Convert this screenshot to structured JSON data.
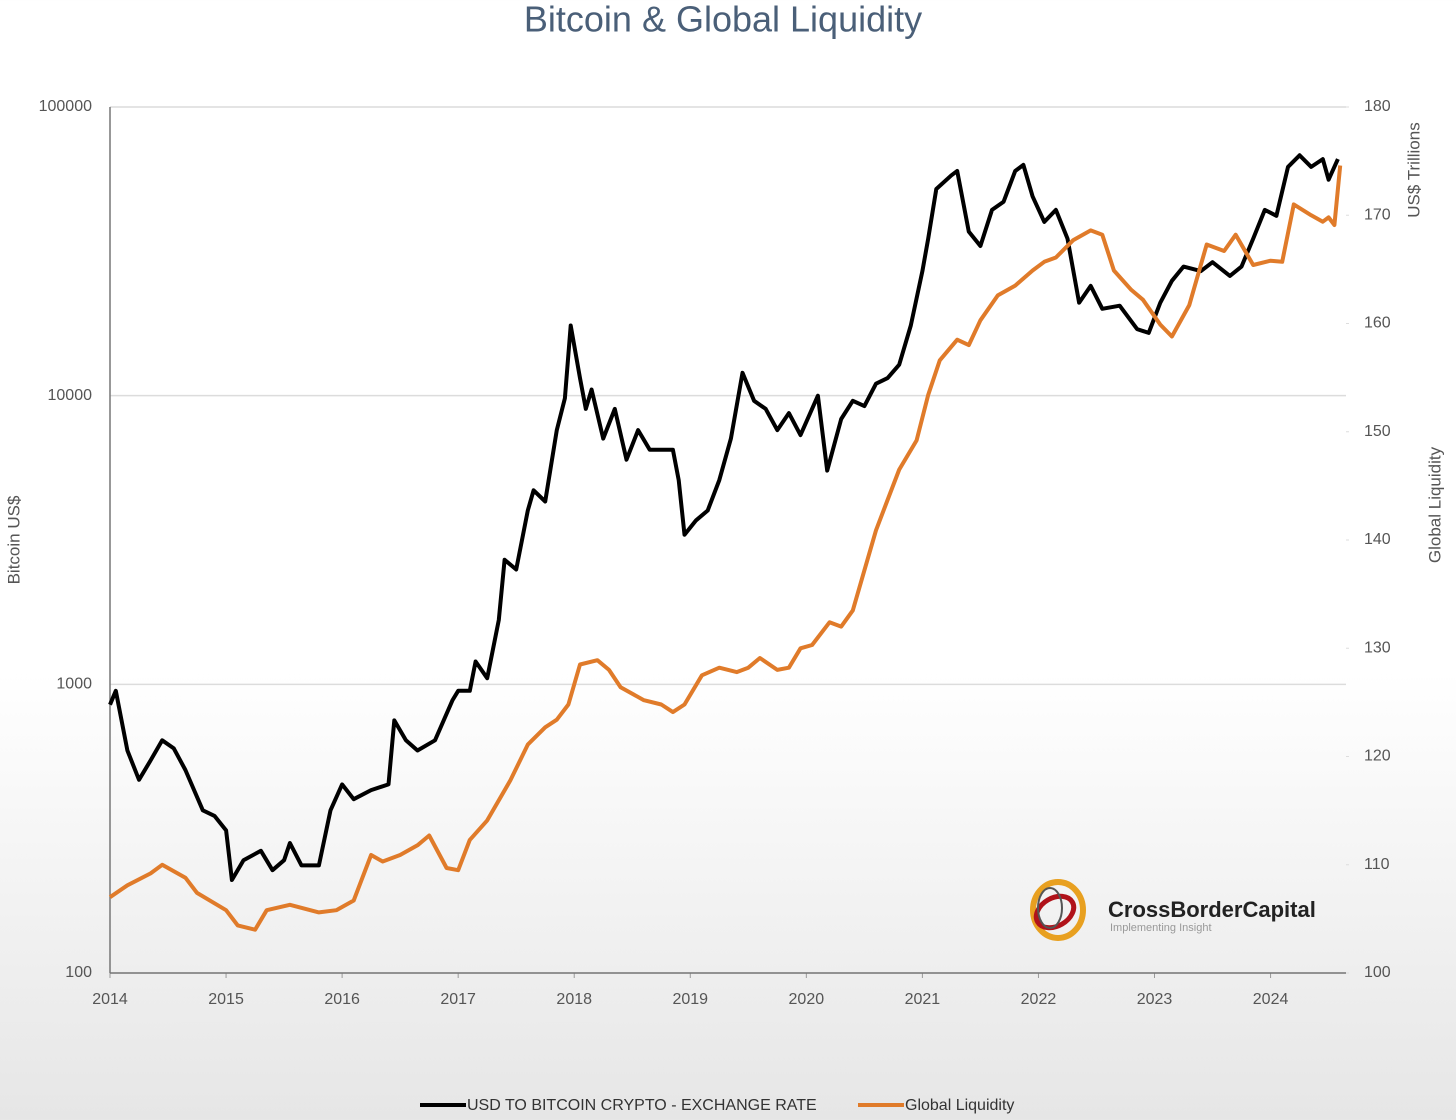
{
  "chart_data": {
    "type": "line",
    "title": "Bitcoin & Global Liquidity",
    "ylabel": "Bitcoin US$",
    "y2label": "US$ Trillions",
    "y2label_secondary": "Global Liquidity",
    "logo": {
      "name": "CrossBorderCapital",
      "tagline": "Implementing Insight"
    },
    "xlim": [
      2014,
      2024.65
    ],
    "xticks": [
      2014,
      2015,
      2016,
      2017,
      2018,
      2019,
      2020,
      2021,
      2022,
      2023,
      2024
    ],
    "ylim": [
      100,
      100000
    ],
    "yscale": "log",
    "yticks": [
      100,
      1000,
      10000,
      100000
    ],
    "y2lim": [
      100,
      180
    ],
    "y2ticks": [
      100,
      110,
      120,
      130,
      140,
      150,
      160,
      170,
      180
    ],
    "grid": true,
    "legend": "bottom",
    "series": [
      {
        "name": "USD TO BITCOIN CRYPTO - EXCHANGE RATE",
        "color": "#000000",
        "axis": "y",
        "x": [
          2014.0,
          2014.05,
          2014.15,
          2014.25,
          2014.35,
          2014.45,
          2014.55,
          2014.65,
          2014.8,
          2014.9,
          2015.0,
          2015.05,
          2015.15,
          2015.3,
          2015.4,
          2015.5,
          2015.55,
          2015.65,
          2015.8,
          2015.9,
          2016.0,
          2016.1,
          2016.25,
          2016.4,
          2016.45,
          2016.55,
          2016.65,
          2016.8,
          2016.95,
          2017.0,
          2017.1,
          2017.15,
          2017.25,
          2017.35,
          2017.4,
          2017.5,
          2017.6,
          2017.65,
          2017.75,
          2017.85,
          2017.92,
          2017.97,
          2018.05,
          2018.1,
          2018.15,
          2018.25,
          2018.35,
          2018.45,
          2018.55,
          2018.65,
          2018.85,
          2018.9,
          2018.95,
          2019.05,
          2019.15,
          2019.25,
          2019.35,
          2019.45,
          2019.55,
          2019.65,
          2019.75,
          2019.85,
          2019.95,
          2020.1,
          2020.18,
          2020.3,
          2020.4,
          2020.5,
          2020.6,
          2020.7,
          2020.8,
          2020.9,
          2021.0,
          2021.05,
          2021.12,
          2021.25,
          2021.3,
          2021.4,
          2021.5,
          2021.6,
          2021.7,
          2021.8,
          2021.87,
          2021.95,
          2022.05,
          2022.15,
          2022.25,
          2022.35,
          2022.45,
          2022.55,
          2022.7,
          2022.85,
          2022.95,
          2023.05,
          2023.15,
          2023.25,
          2023.4,
          2023.5,
          2023.65,
          2023.75,
          2023.85,
          2023.95,
          2024.05,
          2024.15,
          2024.25,
          2024.35,
          2024.45,
          2024.5,
          2024.58
        ],
        "values": [
          850,
          950,
          590,
          467,
          545,
          640,
          600,
          505,
          366,
          350,
          312,
          210,
          246,
          265,
          227,
          246,
          282,
          236,
          236,
          366,
          450,
          400,
          430,
          450,
          750,
          640,
          590,
          640,
          880,
          950,
          950,
          1200,
          1050,
          1670,
          2700,
          2500,
          4000,
          4700,
          4300,
          7600,
          9800,
          17500,
          11500,
          9000,
          10500,
          7100,
          9000,
          6000,
          7600,
          6500,
          6500,
          5100,
          3300,
          3700,
          4000,
          5100,
          7100,
          12000,
          9600,
          9000,
          7600,
          8700,
          7300,
          10000,
          5500,
          8300,
          9600,
          9200,
          11000,
          11500,
          12800,
          17500,
          27000,
          35000,
          52000,
          58000,
          60000,
          37000,
          33000,
          44000,
          47000,
          60000,
          63000,
          49000,
          40000,
          44000,
          35000,
          21000,
          24000,
          20000,
          20500,
          17000,
          16500,
          21000,
          25000,
          28000,
          27000,
          29000,
          26000,
          28000,
          35000,
          44000,
          42000,
          62000,
          68000,
          62000,
          66000,
          56000,
          66000
        ]
      },
      {
        "name": "Global Liquidity",
        "color": "#e07b2a",
        "axis": "y2",
        "x": [
          2014.0,
          2014.15,
          2014.35,
          2014.45,
          2014.65,
          2014.75,
          2015.0,
          2015.1,
          2015.25,
          2015.35,
          2015.55,
          2015.8,
          2015.95,
          2016.1,
          2016.25,
          2016.35,
          2016.5,
          2016.65,
          2016.75,
          2016.9,
          2017.0,
          2017.1,
          2017.25,
          2017.45,
          2017.6,
          2017.75,
          2017.85,
          2017.95,
          2018.05,
          2018.2,
          2018.3,
          2018.4,
          2018.6,
          2018.75,
          2018.85,
          2018.95,
          2019.1,
          2019.25,
          2019.4,
          2019.5,
          2019.6,
          2019.75,
          2019.85,
          2019.95,
          2020.05,
          2020.2,
          2020.3,
          2020.4,
          2020.5,
          2020.6,
          2020.7,
          2020.8,
          2020.95,
          2021.05,
          2021.15,
          2021.3,
          2021.4,
          2021.5,
          2021.65,
          2021.8,
          2021.95,
          2022.05,
          2022.15,
          2022.3,
          2022.45,
          2022.55,
          2022.65,
          2022.8,
          2022.9,
          2023.05,
          2023.15,
          2023.3,
          2023.45,
          2023.6,
          2023.7,
          2023.85,
          2024.0,
          2024.1,
          2024.2,
          2024.35,
          2024.45,
          2024.5,
          2024.55,
          2024.6
        ],
        "values": [
          107.0,
          108.1,
          109.2,
          110.0,
          108.8,
          107.4,
          105.8,
          104.4,
          104.0,
          105.8,
          106.3,
          105.6,
          105.8,
          106.7,
          110.9,
          110.3,
          110.9,
          111.8,
          112.7,
          109.7,
          109.5,
          112.3,
          114.1,
          117.8,
          121.1,
          122.7,
          123.4,
          124.8,
          128.5,
          128.9,
          128.0,
          126.4,
          125.2,
          124.8,
          124.1,
          124.8,
          127.5,
          128.2,
          127.8,
          128.2,
          129.1,
          128.0,
          128.2,
          130.0,
          130.3,
          132.4,
          132.0,
          133.5,
          137.2,
          140.9,
          143.7,
          146.5,
          149.2,
          153.4,
          156.6,
          158.5,
          158.0,
          160.3,
          162.6,
          163.5,
          164.9,
          165.7,
          166.1,
          167.7,
          168.6,
          168.2,
          164.9,
          163.1,
          162.2,
          159.9,
          158.8,
          161.7,
          167.3,
          166.7,
          168.2,
          165.4,
          165.8,
          165.7,
          171.0,
          170.0,
          169.4,
          169.8,
          169.1,
          174.6
        ]
      }
    ]
  }
}
